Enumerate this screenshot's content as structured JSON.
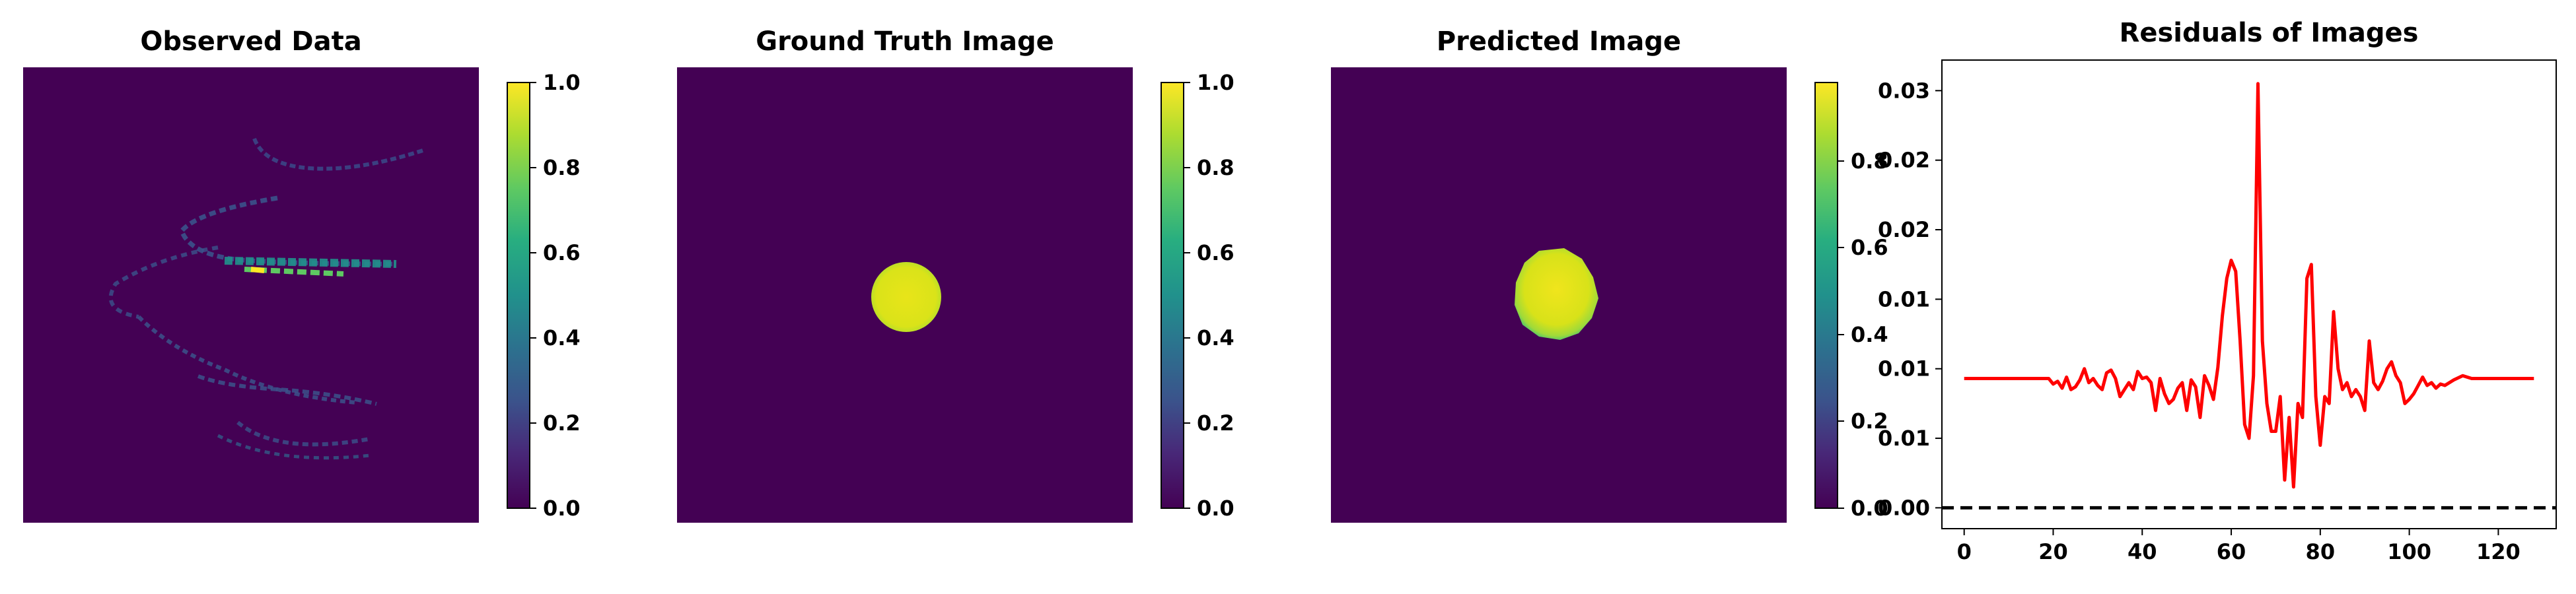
{
  "colors": {
    "viridis_low": "#440154",
    "viridis_mid": "#21918c",
    "viridis_high": "#fde725",
    "residual_line": "#ff0000",
    "zero_line": "#000000"
  },
  "panels": [
    {
      "title": "Observed Data",
      "type": "heatmap",
      "colorbar_ticks": [
        "0.0",
        "0.2",
        "0.4",
        "0.6",
        "0.8",
        "1.0"
      ],
      "colorbar_range": [
        0,
        1.0
      ]
    },
    {
      "title": "Ground Truth Image",
      "type": "heatmap",
      "colorbar_ticks": [
        "0.0",
        "0.2",
        "0.4",
        "0.6",
        "0.8",
        "1.0"
      ],
      "colorbar_range": [
        0,
        1.0
      ]
    },
    {
      "title": "Predicted Image",
      "type": "heatmap",
      "colorbar_ticks": [
        "0.0",
        "0.2",
        "0.4",
        "0.6",
        "0.8"
      ],
      "colorbar_range": [
        0,
        0.98
      ]
    }
  ],
  "chart_data": {
    "type": "line",
    "title": "Residuals of Images",
    "xlabel": "",
    "ylabel": "",
    "xlim": [
      -5,
      133
    ],
    "ylim": [
      -0.0015,
      0.0322
    ],
    "x_ticks": [
      0,
      20,
      40,
      60,
      80,
      100,
      120
    ],
    "x_tick_labels": [
      "0",
      "20",
      "40",
      "60",
      "80",
      "100",
      "120"
    ],
    "y_ticks": [
      0.0,
      0.005,
      0.01,
      0.015,
      0.02,
      0.025,
      0.03
    ],
    "y_tick_labels": [
      "0.00",
      "0.01",
      "0.01",
      "0.01",
      "0.02",
      "0.02",
      "0.03"
    ],
    "reference_line": {
      "y": 0,
      "style": "dashed"
    },
    "series": [
      {
        "x": [
          0,
          4,
          8,
          12,
          16,
          19,
          20,
          21,
          22,
          23,
          24,
          25,
          26,
          27,
          28,
          29,
          30,
          31,
          32,
          33,
          34,
          35,
          36,
          37,
          38,
          39,
          40,
          41,
          42,
          43,
          44,
          45,
          46,
          47,
          48,
          49,
          50,
          51,
          52,
          53,
          54,
          55,
          56,
          57,
          58,
          59,
          60,
          61,
          62,
          63,
          64,
          65,
          66,
          67,
          68,
          69,
          70,
          71,
          72,
          73,
          74,
          75,
          76,
          77,
          78,
          79,
          80,
          81,
          82,
          83,
          84,
          85,
          86,
          87,
          88,
          89,
          90,
          91,
          92,
          93,
          94,
          95,
          96,
          97,
          98,
          99,
          100,
          101,
          102,
          103,
          104,
          105,
          106,
          107,
          108,
          110,
          112,
          114,
          116,
          120,
          124,
          128
        ],
        "y": [
          0.0093,
          0.0093,
          0.0093,
          0.0093,
          0.0093,
          0.0093,
          0.0089,
          0.0091,
          0.0086,
          0.0094,
          0.0085,
          0.0087,
          0.0092,
          0.01,
          0.009,
          0.0093,
          0.0088,
          0.0085,
          0.0097,
          0.0099,
          0.0093,
          0.008,
          0.0085,
          0.009,
          0.0085,
          0.0098,
          0.0093,
          0.0094,
          0.009,
          0.007,
          0.0093,
          0.0082,
          0.0075,
          0.0078,
          0.0086,
          0.009,
          0.007,
          0.0092,
          0.0087,
          0.0065,
          0.0095,
          0.0088,
          0.0078,
          0.0101,
          0.0138,
          0.0165,
          0.0178,
          0.017,
          0.012,
          0.006,
          0.005,
          0.0095,
          0.0305,
          0.012,
          0.0075,
          0.0055,
          0.0055,
          0.008,
          0.002,
          0.0065,
          0.0015,
          0.0075,
          0.0065,
          0.0165,
          0.0175,
          0.008,
          0.0045,
          0.008,
          0.0075,
          0.0141,
          0.01,
          0.0085,
          0.009,
          0.008,
          0.0085,
          0.008,
          0.007,
          0.012,
          0.009,
          0.0085,
          0.0091,
          0.01,
          0.0105,
          0.0095,
          0.009,
          0.0075,
          0.0078,
          0.0082,
          0.0088,
          0.0094,
          0.0088,
          0.009,
          0.0086,
          0.0089,
          0.0088,
          0.0092,
          0.0095,
          0.0093,
          0.0093,
          0.0093,
          0.0093,
          0.0093
        ]
      }
    ]
  }
}
